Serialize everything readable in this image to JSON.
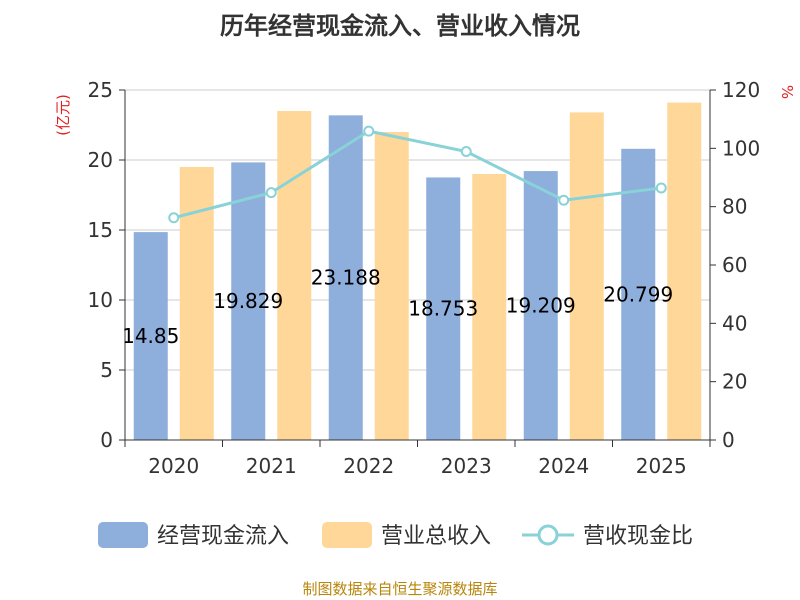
{
  "title": "历年经营现金流入、营业收入情况",
  "source": "制图数据来自恒生聚源数据库",
  "colors": {
    "cash_inflow": "#8eaedb",
    "revenue": "#ffd899",
    "ratio_line": "#88d2d8",
    "axis": "#333333",
    "grid": "#cccccc",
    "unit": "#e02020"
  },
  "chart_data": {
    "type": "bar",
    "categories": [
      "2020",
      "2021",
      "2022",
      "2023",
      "2024",
      "2025"
    ],
    "y_left": {
      "unit": "(亿元)",
      "ylim": [
        0,
        25
      ],
      "ticks": [
        0,
        5,
        10,
        15,
        20,
        25
      ]
    },
    "y_right": {
      "unit": "%",
      "ylim": [
        0,
        120
      ],
      "ticks": [
        0,
        20,
        40,
        60,
        80,
        100,
        120
      ]
    },
    "grid": true,
    "legend_position": "bottom",
    "series": [
      {
        "name": "经营现金流入",
        "type": "bar",
        "axis": "left",
        "values": [
          14.85,
          19.829,
          23.188,
          18.753,
          19.209,
          20.799
        ],
        "labels": [
          "14.85",
          "19.829",
          "23.188",
          "18.753",
          "19.209",
          "20.799"
        ]
      },
      {
        "name": "营业总收入",
        "type": "bar",
        "axis": "left",
        "values": [
          19.5,
          23.5,
          22.0,
          19.0,
          23.4,
          24.1
        ]
      },
      {
        "name": "营收现金比",
        "type": "line",
        "axis": "right",
        "values": [
          76.2,
          84.8,
          105.9,
          98.9,
          82.2,
          86.4
        ]
      }
    ]
  }
}
